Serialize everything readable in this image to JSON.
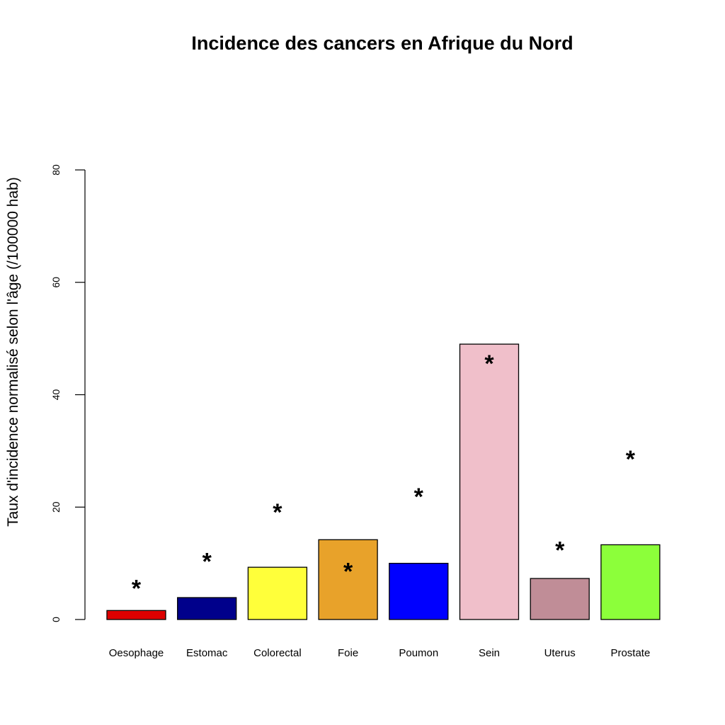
{
  "chart_data": {
    "type": "bar",
    "title": "Incidence des cancers en Afrique du Nord",
    "ylabel": "Taux d'incidence normalisé selon l'âge (/100000 hab)",
    "xlabel": "",
    "ylim": [
      0,
      80
    ],
    "yticks": [
      "0",
      "20",
      "40",
      "60",
      "80"
    ],
    "categories": [
      "Oesophage",
      "Estomac",
      "Colorectal",
      "Foie",
      "Poumon",
      "Sein",
      "Uterus",
      "Prostate"
    ],
    "values": [
      1.6,
      3.9,
      9.3,
      14.2,
      10.0,
      49.0,
      7.3,
      13.3
    ],
    "markers": [
      6.0,
      10.8,
      19.5,
      9.0,
      22.3,
      46.0,
      12.8,
      29.0
    ],
    "marker_symbol": "*",
    "colors": [
      "#dd0000",
      "#00008b",
      "#ffff3a",
      "#e8a22a",
      "#0000ff",
      "#f0bfca",
      "#c08d97",
      "#8cff3a"
    ],
    "grid": false,
    "legend": "none"
  }
}
